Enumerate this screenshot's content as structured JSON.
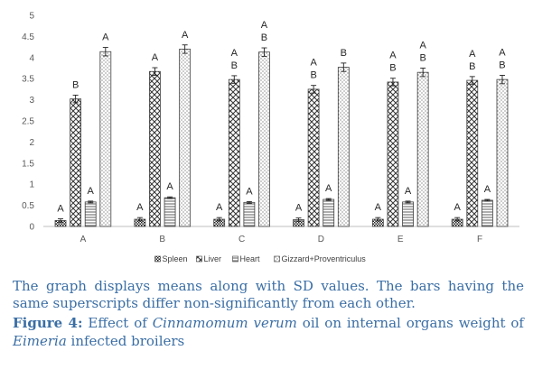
{
  "chart_data": {
    "type": "bar",
    "categories": [
      "A",
      "B",
      "C",
      "D",
      "E",
      "F"
    ],
    "ylim": [
      0,
      5
    ],
    "yticks": [
      0,
      0.5,
      1,
      1.5,
      2,
      2.5,
      3,
      3.5,
      4,
      4.5,
      5
    ],
    "ytick_labels": [
      "0",
      "0.5",
      "1",
      "1.5",
      "2",
      "2.5",
      "3",
      "3.5",
      "4",
      "4.5",
      "5"
    ],
    "grid": false,
    "legend_position": "bottom",
    "error_bars": true,
    "series": [
      {
        "name": "Spleen",
        "pattern": "dense-check",
        "values": [
          0.14,
          0.17,
          0.17,
          0.16,
          0.17,
          0.17
        ],
        "errors": [
          0.04,
          0.04,
          0.04,
          0.04,
          0.04,
          0.04
        ],
        "letters": [
          [
            "A"
          ],
          [
            "A"
          ],
          [
            "A"
          ],
          [
            "A"
          ],
          [
            "A"
          ],
          [
            "A"
          ]
        ]
      },
      {
        "name": "Liver",
        "pattern": "crosshatch",
        "values": [
          3.02,
          3.67,
          3.48,
          3.25,
          3.42,
          3.46
        ],
        "errors": [
          0.09,
          0.09,
          0.09,
          0.09,
          0.09,
          0.09
        ],
        "letters": [
          [
            "B"
          ],
          [
            "A"
          ],
          [
            "A",
            "B"
          ],
          [
            "A",
            "B"
          ],
          [
            "A",
            "B"
          ],
          [
            "A",
            "B"
          ]
        ]
      },
      {
        "name": "Heart",
        "pattern": "horizontal-lines",
        "values": [
          0.58,
          0.68,
          0.57,
          0.64,
          0.58,
          0.62
        ],
        "errors": [
          0.02,
          0.02,
          0.02,
          0.02,
          0.02,
          0.02
        ],
        "letters": [
          [
            "A"
          ],
          [
            "A"
          ],
          [
            "A"
          ],
          [
            "A"
          ],
          [
            "A"
          ],
          [
            "A"
          ]
        ]
      },
      {
        "name": "Gizzard+Proventriculus",
        "pattern": "dots",
        "values": [
          4.14,
          4.2,
          4.13,
          3.77,
          3.65,
          3.48
        ],
        "errors": [
          0.1,
          0.1,
          0.1,
          0.1,
          0.1,
          0.1
        ],
        "letters": [
          [
            "A"
          ],
          [
            "A"
          ],
          [
            "A",
            "B"
          ],
          [
            "B"
          ],
          [
            "A",
            "B"
          ],
          [
            "A",
            "B"
          ]
        ]
      }
    ]
  },
  "note_text": "The graph displays means along with SD values. The bars having the same superscripts differ non-significantly from each other.",
  "caption": {
    "label": "Figure 4:",
    "part1": " Effect of ",
    "italic1": "Cinnamomum verum",
    "part2": " oil on internal organs weight of ",
    "italic2": "Eimeria",
    "part3": " infected broilers"
  },
  "colors": {
    "axis": "#bfbfbf",
    "bar_outline": "#404040",
    "caption_text": "#3a6ea5"
  }
}
